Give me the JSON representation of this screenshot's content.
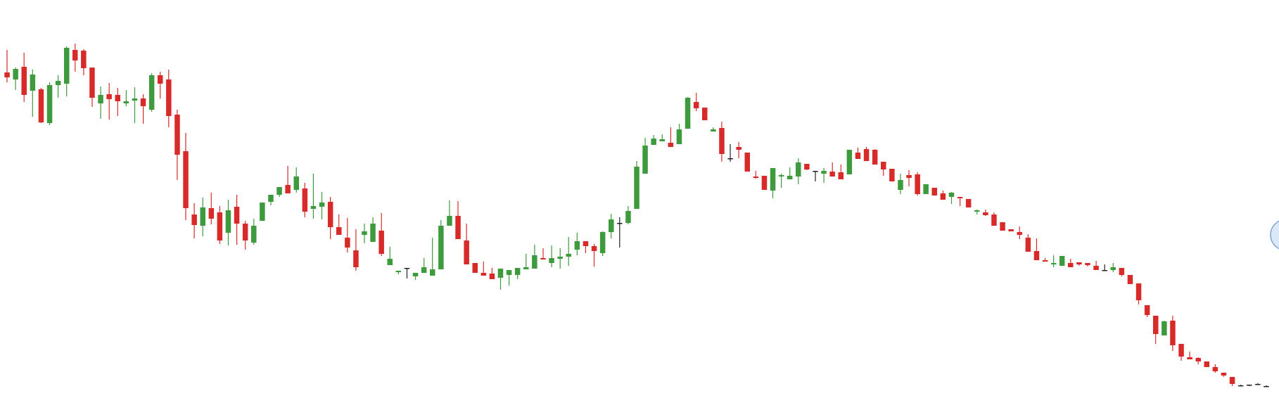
{
  "colors": {
    "background": "#ffffff",
    "bullish": "#3d9a3d",
    "bearish": "#d92a2a",
    "doji": "#222222",
    "marker_fill": "#dbe8f7",
    "marker_stroke": "#7ea6d6"
  },
  "chart_data": {
    "type": "candlestick",
    "grid": false,
    "legend": "none",
    "x_axis_visible": false,
    "y_axis_visible": false,
    "ylim": [
      0,
      593
    ],
    "note": "",
    "candles": [
      [
        490,
        483,
        522,
        476
      ],
      [
        480,
        495,
        497,
        465
      ],
      [
        498,
        458,
        518,
        448
      ],
      [
        464,
        487,
        494,
        427
      ],
      [
        466,
        419,
        468,
        418
      ],
      [
        418,
        472,
        476,
        415
      ],
      [
        472,
        478,
        486,
        454
      ],
      [
        474,
        525,
        527,
        456
      ],
      [
        522,
        507,
        531,
        491
      ],
      [
        521,
        496,
        523,
        486
      ],
      [
        497,
        454,
        480,
        441
      ],
      [
        446,
        458,
        470,
        424
      ],
      [
        459,
        452,
        475,
        423
      ],
      [
        458,
        449,
        468,
        428
      ],
      [
        446,
        449,
        465,
        442
      ],
      [
        450,
        453,
        469,
        418
      ],
      [
        453,
        442,
        459,
        417
      ],
      [
        437,
        486,
        489,
        434
      ],
      [
        486,
        474,
        491,
        453
      ],
      [
        480,
        428,
        494,
        412
      ],
      [
        430,
        373,
        437,
        337
      ],
      [
        378,
        297,
        404,
        280
      ],
      [
        288,
        273,
        304,
        254
      ],
      [
        272,
        298,
        312,
        257
      ],
      [
        297,
        282,
        319,
        274
      ],
      [
        291,
        251,
        300,
        246
      ],
      [
        262,
        294,
        309,
        244
      ],
      [
        299,
        275,
        316,
        245
      ],
      [
        275,
        251,
        279,
        238
      ],
      [
        248,
        272,
        282,
        245
      ],
      [
        279,
        305,
        305,
        290
      ],
      [
        306,
        316,
        316,
        301
      ],
      [
        316,
        327,
        324,
        313
      ],
      [
        330,
        318,
        320,
        357
      ],
      [
        323,
        342,
        319,
        355
      ],
      [
        325,
        292,
        333,
        284
      ],
      [
        296,
        300,
        282,
        346
      ],
      [
        299,
        305,
        281,
        320
      ],
      [
        306,
        270,
        313,
        253
      ],
      [
        270,
        259,
        288,
        261
      ],
      [
        255,
        241,
        283,
        234
      ],
      [
        237,
        213,
        267,
        208
      ],
      [
        259,
        264,
        247,
        275
      ],
      [
        249,
        275,
        253,
        284
      ],
      [
        265,
        232,
        290,
        229
      ],
      [
        216,
        225,
        221,
        242
      ],
      [
        206,
        208,
        203,
        206
      ],
      [
        211,
        212,
        202,
        197
      ],
      [
        200,
        205,
        195,
        199
      ],
      [
        205,
        213,
        207,
        226
      ],
      [
        201,
        210,
        222,
        255
      ],
      [
        210,
        272,
        271,
        280
      ],
      [
        272,
        286,
        294,
        308
      ],
      [
        286,
        253,
        307,
        262
      ],
      [
        251,
        217,
        275,
        268
      ],
      [
        219,
        205,
        217,
        219
      ],
      [
        205,
        201,
        213,
        221
      ],
      [
        204,
        196,
        210,
        212
      ],
      [
        198,
        211,
        181,
        210
      ],
      [
        202,
        209,
        187,
        208
      ],
      [
        202,
        212,
        196,
        210
      ],
      [
        210,
        213,
        211,
        232
      ],
      [
        211,
        230,
        232,
        245
      ],
      [
        226,
        224,
        240,
        238
      ],
      [
        219,
        226,
        213,
        244
      ],
      [
        225,
        228,
        211,
        240
      ],
      [
        228,
        232,
        215,
        256
      ],
      [
        238,
        250,
        230,
        262
      ],
      [
        250,
        243,
        233,
        236
      ],
      [
        243,
        236,
        246,
        214
      ],
      [
        233,
        263,
        264,
        229
      ],
      [
        263,
        281,
        289,
        254
      ],
      [
        275,
        276,
        284,
        241
      ],
      [
        276,
        293,
        274,
        300
      ],
      [
        296,
        356,
        350,
        364
      ],
      [
        346,
        386,
        372,
        397
      ],
      [
        387,
        396,
        389,
        401
      ],
      [
        392,
        395,
        402,
        402
      ],
      [
        390,
        384,
        405,
        412
      ],
      [
        388,
        409,
        417,
        392
      ],
      [
        410,
        454,
        413,
        455
      ],
      [
        448,
        439,
        461,
        435
      ],
      [
        440,
        422,
        423,
        430
      ],
      [
        406,
        409,
        412,
        408
      ],
      [
        411,
        374,
        420,
        363
      ],
      [
        368,
        368,
        388,
        363
      ],
      [
        384,
        380,
        368,
        391
      ],
      [
        376,
        349,
        363,
        372
      ],
      [
        342,
        340,
        350,
        339
      ],
      [
        343,
        323,
        327,
        323
      ],
      [
        322,
        354,
        311,
        344
      ],
      [
        342,
        344,
        326,
        346
      ],
      [
        338,
        343,
        344,
        355
      ],
      [
        342,
        362,
        331,
        368
      ],
      [
        360,
        352,
        356,
        351
      ],
      [
        350,
        350,
        335,
        342
      ],
      [
        346,
        350,
        333,
        354
      ],
      [
        349,
        342,
        356,
        362
      ],
      [
        348,
        338,
        350,
        359
      ],
      [
        345,
        380,
        380,
        372
      ],
      [
        376,
        367,
        383,
        371
      ],
      [
        381,
        364,
        368,
        384
      ],
      [
        380,
        359,
        377,
        381
      ],
      [
        363,
        352,
        343,
        363
      ],
      [
        353,
        335,
        339,
        339
      ],
      [
        323,
        337,
        317,
        346
      ],
      [
        344,
        340,
        351,
        328
      ],
      [
        345,
        317,
        348,
        315
      ],
      [
        317,
        331,
        318,
        327
      ],
      [
        326,
        315,
        326,
        322
      ],
      [
        318,
        309,
        322,
        313
      ],
      [
        313,
        319,
        320,
        303
      ],
      [
        313,
        311,
        302,
        300
      ],
      [
        310,
        298,
        310,
        298
      ],
      [
        292,
        294,
        288,
        295
      ],
      [
        291,
        287,
        295,
        286
      ],
      [
        288,
        272,
        291,
        273
      ],
      [
        277,
        265,
        269,
        269
      ],
      [
        267,
        264,
        265,
        267
      ],
      [
        263,
        259,
        253,
        271
      ],
      [
        255,
        235,
        255,
        260
      ],
      [
        236,
        223,
        224,
        254
      ],
      [
        223,
        221,
        222,
        226
      ],
      [
        217,
        219,
        230,
        213
      ],
      [
        215,
        229,
        220,
        223
      ],
      [
        219,
        213,
        225,
        214
      ],
      [
        220,
        217,
        217,
        215
      ],
      [
        219,
        216,
        214,
        219
      ],
      [
        215,
        209,
        211,
        222
      ],
      [
        209,
        208,
        208,
        217
      ],
      [
        209,
        213,
        219,
        206
      ],
      [
        212,
        202,
        200,
        203
      ],
      [
        202,
        189,
        193,
        191
      ],
      [
        190,
        166,
        160,
        160
      ],
      [
        159,
        145,
        154,
        142
      ],
      [
        144,
        118,
        114,
        104
      ],
      [
        116,
        136,
        134,
        137
      ],
      [
        137,
        102,
        144,
        94
      ],
      [
        104,
        86,
        89,
        80
      ],
      [
        85,
        82,
        93,
        84
      ],
      [
        84,
        79,
        75,
        85
      ],
      [
        79,
        71,
        76,
        79
      ],
      [
        71,
        65,
        75,
        63
      ],
      [
        63,
        59,
        57,
        61
      ],
      [
        57,
        47,
        44,
        52
      ],
      [
        45,
        45,
        46,
        46
      ],
      [
        46,
        45,
        44,
        45
      ],
      [
        46,
        47,
        48,
        47
      ],
      [
        44,
        43,
        44,
        45
      ]
    ]
  },
  "side_marker": {
    "icon": "circle-handle-icon"
  }
}
